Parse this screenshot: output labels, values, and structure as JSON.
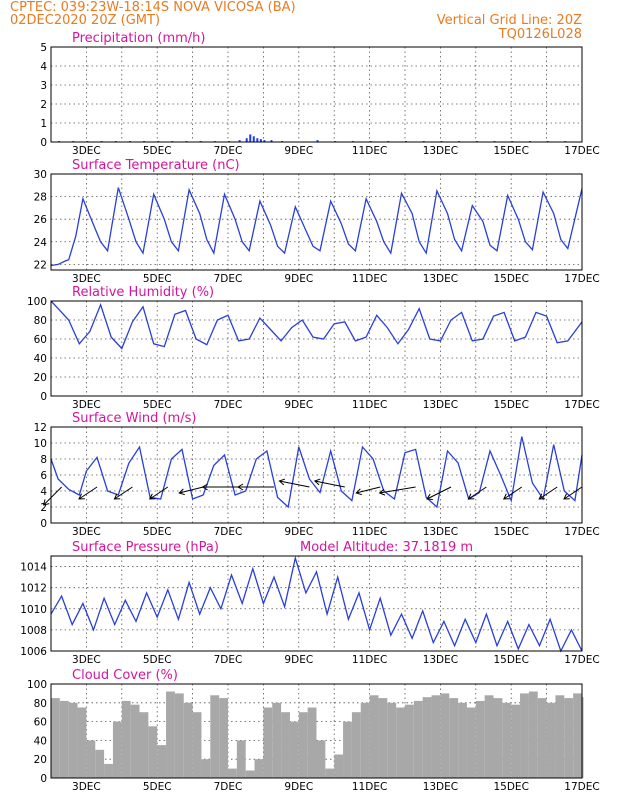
{
  "header": {
    "station_line": "CPTEC:   039:23W-18:14S   NOVA VICOSA (BA)",
    "date_line": "02DEC2020 20Z (GMT)",
    "grid_line": "Vertical Grid Line: 20Z",
    "code": "TQ0126L028"
  },
  "x_axis": {
    "ticks": [
      "3DEC",
      "5DEC",
      "7DEC",
      "9DEC",
      "11DEC",
      "13DEC",
      "15DEC",
      "17DEC"
    ],
    "start": "02DEC2020 20Z",
    "end": "17DEC2020 20Z"
  },
  "colors": {
    "line": "#2a3fd9",
    "title": "#d4159b",
    "header": "#e87b22",
    "cloud_bar": "#a8a8a8",
    "precip_bar": "#1a3cff"
  },
  "chart_data": [
    {
      "type": "bar",
      "title": "Precipitation (mm/h)",
      "ylim": [
        0,
        5
      ],
      "yticks": [
        0,
        1,
        2,
        3,
        4,
        5
      ],
      "x_days": [
        2.2,
        2.6,
        3.0,
        3.4,
        3.8,
        4.2,
        4.6,
        5.0,
        5.4,
        5.8,
        6.2,
        6.6,
        7.0,
        7.3,
        7.5,
        7.6,
        7.7,
        7.8,
        7.9,
        8.0,
        8.2,
        8.5,
        9.5,
        10.0,
        10.5,
        11.0,
        11.5,
        12.0,
        12.5,
        13.0,
        13.5,
        14.0,
        14.5,
        15.0,
        15.5,
        16.0,
        16.5
      ],
      "values": [
        0.05,
        0.05,
        0.05,
        0.05,
        0.05,
        0.05,
        0.05,
        0.05,
        0.05,
        0.05,
        0.05,
        0.05,
        0.05,
        0.1,
        0.2,
        0.4,
        0.3,
        0.2,
        0.15,
        0.1,
        0.1,
        0.05,
        0.1,
        0.05,
        0.05,
        0.05,
        0.05,
        0.05,
        0.05,
        0.05,
        0.05,
        0.05,
        0.05,
        0.05,
        0.05,
        0.05,
        0.05
      ]
    },
    {
      "type": "line",
      "title": "Surface Temperature (nC)",
      "ylim": [
        21.5,
        30
      ],
      "yticks": [
        22,
        24,
        26,
        28,
        30
      ],
      "x_days": [
        2.0,
        2.2,
        2.4,
        2.5,
        2.7,
        2.9,
        3.2,
        3.4,
        3.6,
        3.9,
        4.2,
        4.4,
        4.6,
        4.9,
        5.2,
        5.4,
        5.6,
        5.9,
        6.2,
        6.4,
        6.6,
        6.9,
        7.2,
        7.4,
        7.6,
        7.9,
        8.2,
        8.4,
        8.6,
        8.9,
        9.2,
        9.4,
        9.6,
        9.9,
        10.2,
        10.4,
        10.6,
        10.9,
        11.2,
        11.4,
        11.6,
        11.9,
        12.2,
        12.4,
        12.6,
        12.9,
        13.2,
        13.4,
        13.6,
        13.9,
        14.2,
        14.4,
        14.6,
        14.9,
        15.2,
        15.4,
        15.6,
        15.9,
        16.2,
        16.4,
        16.6,
        17.0
      ],
      "values": [
        21.9,
        22.0,
        22.3,
        22.4,
        24.5,
        27.8,
        25.5,
        24.0,
        23.2,
        28.8,
        26.0,
        24.0,
        23.0,
        28.2,
        26.0,
        24.0,
        23.2,
        28.6,
        26.5,
        24.2,
        23.0,
        28.2,
        26.0,
        24.0,
        23.2,
        27.6,
        25.5,
        23.6,
        23.0,
        27.1,
        25.0,
        23.6,
        23.2,
        27.6,
        25.6,
        23.8,
        23.2,
        27.8,
        25.8,
        24.0,
        23.0,
        28.3,
        26.5,
        24.0,
        23.0,
        28.5,
        26.5,
        24.2,
        23.2,
        27.2,
        25.8,
        23.7,
        23.2,
        28.1,
        26.0,
        24.0,
        23.3,
        28.4,
        26.5,
        24.2,
        23.4,
        28.7
      ]
    },
    {
      "type": "line",
      "title": "Relative Humidity (%)",
      "ylim": [
        0,
        100
      ],
      "yticks": [
        0,
        20,
        40,
        60,
        80,
        100
      ],
      "x_days": [
        2.0,
        2.2,
        2.5,
        2.8,
        3.1,
        3.4,
        3.7,
        4.0,
        4.3,
        4.6,
        4.9,
        5.2,
        5.5,
        5.8,
        6.1,
        6.4,
        6.7,
        7.0,
        7.3,
        7.6,
        7.9,
        8.2,
        8.5,
        8.8,
        9.1,
        9.4,
        9.7,
        10.0,
        10.3,
        10.6,
        10.9,
        11.2,
        11.5,
        11.8,
        12.1,
        12.4,
        12.7,
        13.0,
        13.3,
        13.6,
        13.9,
        14.2,
        14.5,
        14.8,
        15.1,
        15.4,
        15.7,
        16.0,
        16.3,
        16.6,
        17.0
      ],
      "values": [
        100,
        92,
        80,
        55,
        68,
        96,
        62,
        50,
        78,
        94,
        55,
        52,
        86,
        90,
        60,
        54,
        80,
        85,
        58,
        60,
        82,
        70,
        58,
        72,
        80,
        62,
        60,
        76,
        78,
        58,
        62,
        85,
        72,
        55,
        70,
        92,
        60,
        58,
        80,
        88,
        58,
        60,
        84,
        88,
        58,
        62,
        88,
        84,
        56,
        58,
        78
      ]
    },
    {
      "type": "line",
      "title": "Surface Wind (m/s)",
      "ylim": [
        0,
        12
      ],
      "yticks": [
        0,
        2,
        4,
        6,
        8,
        10,
        12
      ],
      "x_days": [
        2.0,
        2.2,
        2.5,
        2.8,
        3.0,
        3.3,
        3.6,
        3.9,
        4.2,
        4.5,
        4.8,
        5.1,
        5.4,
        5.7,
        6.0,
        6.3,
        6.6,
        6.9,
        7.2,
        7.5,
        7.8,
        8.1,
        8.4,
        8.7,
        9.0,
        9.3,
        9.6,
        9.9,
        10.2,
        10.5,
        10.8,
        11.1,
        11.4,
        11.7,
        12.0,
        12.3,
        12.6,
        12.9,
        13.2,
        13.5,
        13.8,
        14.1,
        14.4,
        14.7,
        15.0,
        15.3,
        15.6,
        15.9,
        16.2,
        16.5,
        16.8,
        17.0
      ],
      "values": [
        8.0,
        5.5,
        4.2,
        3.5,
        6.5,
        8.2,
        4.0,
        3.5,
        7.5,
        9.5,
        3.2,
        3.0,
        8.0,
        9.2,
        3.0,
        3.5,
        7.2,
        8.5,
        3.5,
        4.0,
        8.0,
        9.0,
        3.2,
        2.0,
        9.5,
        5.5,
        3.8,
        9.0,
        4.0,
        2.8,
        9.5,
        8.0,
        4.0,
        3.0,
        8.8,
        9.2,
        3.2,
        2.0,
        9.0,
        7.5,
        3.0,
        3.8,
        9.0,
        6.0,
        2.8,
        10.8,
        5.0,
        3.0,
        9.8,
        4.0,
        2.8,
        8.5
      ],
      "vector_days": [
        2.3,
        3.3,
        4.3,
        5.3,
        6.3,
        7.3,
        8.3,
        9.3,
        10.3,
        11.3,
        12.3,
        13.3,
        14.3,
        15.3,
        16.3,
        17.0
      ],
      "vector_u": [
        -3,
        -3,
        -3,
        -3,
        -4,
        -6,
        -6,
        -5,
        -5,
        -4,
        -6,
        -4,
        -3,
        -3,
        -3,
        -3
      ],
      "vector_v": [
        -3,
        -2,
        -2,
        -2,
        -1,
        0,
        0,
        1,
        1,
        -1,
        -1,
        -2,
        -2,
        -2,
        -2,
        -2
      ]
    },
    {
      "type": "line",
      "title": "Surface Pressure (hPa)",
      "subtitle": "Model Altitude: 37.1819 m",
      "ylim": [
        1006,
        1015
      ],
      "yticks": [
        1006,
        1008,
        1010,
        1012,
        1014
      ],
      "x_days": [
        2.0,
        2.3,
        2.6,
        2.9,
        3.2,
        3.5,
        3.8,
        4.1,
        4.4,
        4.7,
        5.0,
        5.3,
        5.6,
        5.9,
        6.2,
        6.5,
        6.8,
        7.1,
        7.4,
        7.7,
        8.0,
        8.3,
        8.6,
        8.9,
        9.2,
        9.5,
        9.8,
        10.1,
        10.4,
        10.7,
        11.0,
        11.3,
        11.6,
        11.9,
        12.2,
        12.5,
        12.8,
        13.1,
        13.4,
        13.7,
        14.0,
        14.3,
        14.6,
        14.9,
        15.2,
        15.5,
        15.8,
        16.1,
        16.4,
        16.7,
        17.0
      ],
      "values": [
        1009.5,
        1011.2,
        1008.5,
        1010.5,
        1008.0,
        1011.0,
        1008.5,
        1010.8,
        1008.8,
        1011.5,
        1009.2,
        1011.8,
        1009.0,
        1012.5,
        1009.5,
        1012.0,
        1010.0,
        1013.2,
        1010.5,
        1013.8,
        1010.5,
        1013.0,
        1010.2,
        1014.8,
        1011.5,
        1013.5,
        1009.5,
        1013.0,
        1009.0,
        1011.5,
        1008.0,
        1011.0,
        1007.5,
        1009.5,
        1007.2,
        1009.8,
        1006.8,
        1008.8,
        1006.5,
        1009.0,
        1006.8,
        1009.5,
        1006.5,
        1008.8,
        1006.2,
        1008.5,
        1006.5,
        1009.0,
        1006.0,
        1008.0,
        1006.0
      ]
    },
    {
      "type": "bar",
      "title": "Cloud Cover (%)",
      "ylim": [
        0,
        100
      ],
      "yticks": [
        0,
        20,
        40,
        60,
        80,
        100
      ],
      "x_days": [
        2.0,
        2.25,
        2.5,
        2.75,
        3.0,
        3.25,
        3.5,
        3.75,
        4.0,
        4.25,
        4.5,
        4.75,
        5.0,
        5.25,
        5.5,
        5.75,
        6.0,
        6.25,
        6.5,
        6.75,
        7.0,
        7.25,
        7.5,
        7.75,
        8.0,
        8.25,
        8.5,
        8.75,
        9.0,
        9.25,
        9.5,
        9.75,
        10.0,
        10.25,
        10.5,
        10.75,
        11.0,
        11.25,
        11.5,
        11.75,
        12.0,
        12.25,
        12.5,
        12.75,
        13.0,
        13.25,
        13.5,
        13.75,
        14.0,
        14.25,
        14.5,
        14.75,
        15.0,
        15.25,
        15.5,
        15.75,
        16.0,
        16.25,
        16.5,
        16.75,
        17.0
      ],
      "values": [
        85,
        82,
        80,
        75,
        40,
        30,
        15,
        60,
        82,
        78,
        70,
        55,
        35,
        92,
        90,
        80,
        70,
        20,
        88,
        85,
        10,
        40,
        8,
        20,
        75,
        80,
        70,
        60,
        70,
        75,
        40,
        10,
        25,
        60,
        70,
        80,
        88,
        85,
        80,
        75,
        78,
        82,
        86,
        88,
        90,
        85,
        80,
        75,
        82,
        88,
        85,
        80,
        78,
        90,
        92,
        85,
        80,
        88,
        85,
        90,
        86
      ]
    }
  ]
}
